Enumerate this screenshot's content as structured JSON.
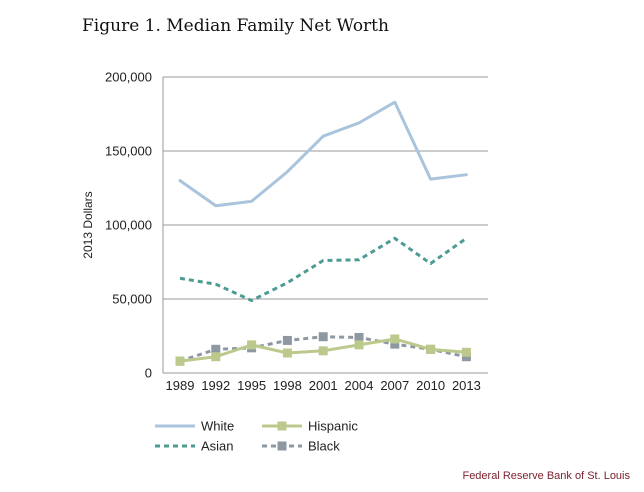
{
  "chart_data": {
    "type": "line",
    "title": "Figure 1. Median Family Net Worth",
    "xlabel": "",
    "ylabel": "2013 Dollars",
    "categories": [
      "1989",
      "1992",
      "1995",
      "1998",
      "2001",
      "2004",
      "2007",
      "2010",
      "2013"
    ],
    "ylim": [
      0,
      200000
    ],
    "yticks": [
      0,
      50000,
      100000,
      150000,
      200000
    ],
    "ytick_labels": [
      "0",
      "50,000",
      "100,000",
      "150,000",
      "200,000"
    ],
    "grid": true,
    "legend_position": "bottom",
    "series": [
      {
        "name": "White",
        "color": "#a9c4dc",
        "style": "solid",
        "marker": "none",
        "values": [
          130000,
          113000,
          116000,
          136000,
          160000,
          169000,
          183000,
          131000,
          134000
        ]
      },
      {
        "name": "Hispanic",
        "color": "#bcc98c",
        "style": "solid",
        "marker": "square",
        "values": [
          8000,
          11000,
          19000,
          13500,
          15000,
          19000,
          23000,
          16000,
          14000
        ]
      },
      {
        "name": "Asian",
        "color": "#4d9c93",
        "style": "dashed",
        "marker": "none",
        "values": [
          64000,
          60000,
          49000,
          61000,
          76000,
          76500,
          91000,
          74000,
          91000
        ]
      },
      {
        "name": "Black",
        "color": "#8e98a2",
        "style": "dashed",
        "marker": "square",
        "values": [
          8000,
          16000,
          17000,
          22000,
          24500,
          24000,
          19500,
          16000,
          11000
        ]
      }
    ],
    "source_text": "Federal Reserve Bank of St. Louis",
    "source_color": "#7a1f2b"
  }
}
